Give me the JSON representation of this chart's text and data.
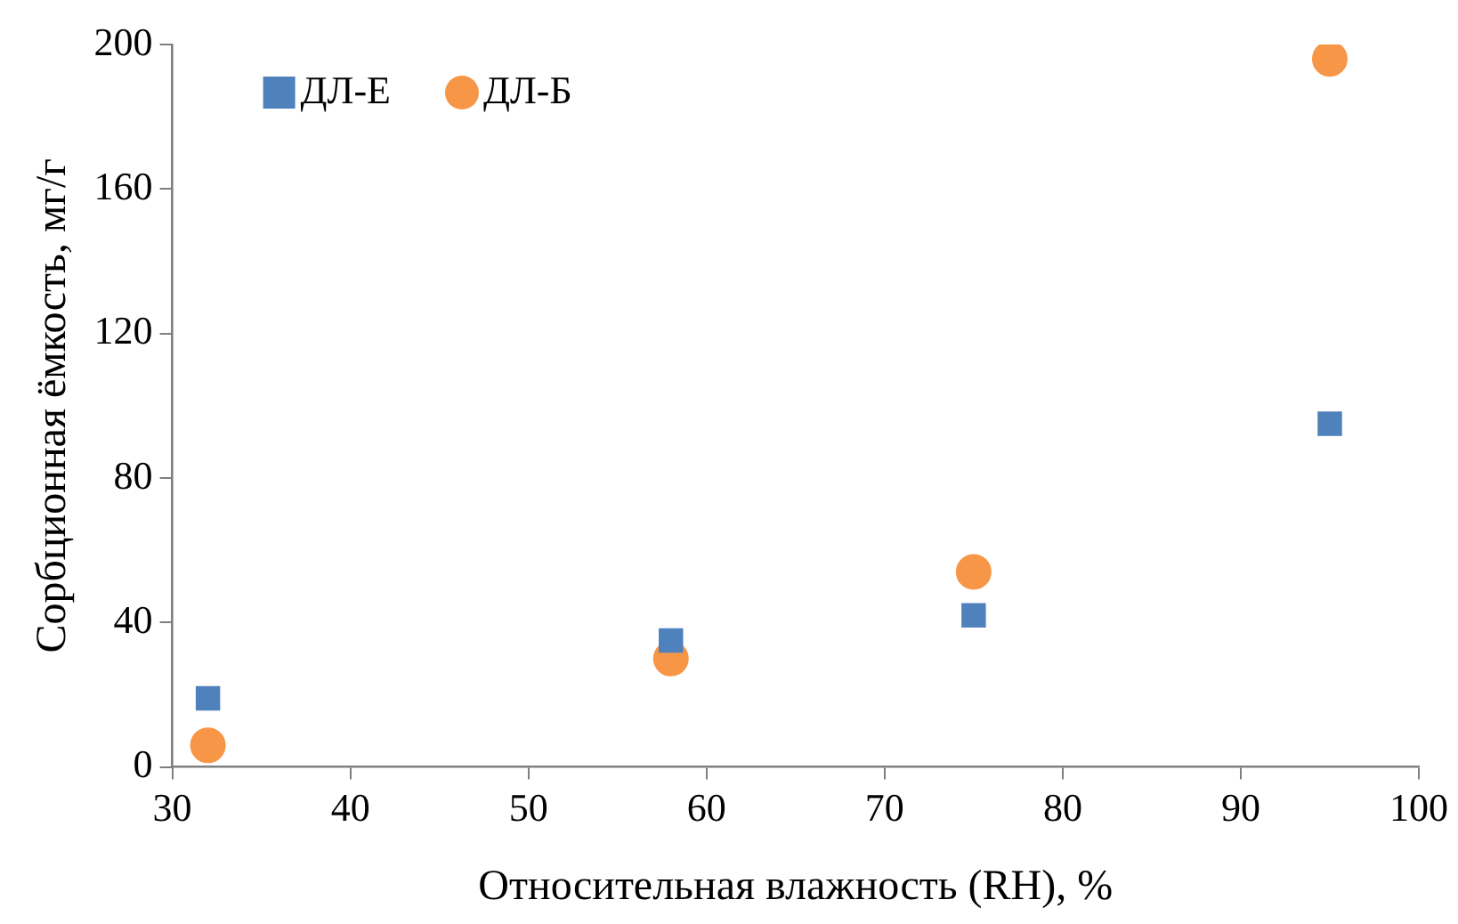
{
  "chart_data": {
    "type": "scatter",
    "xlabel": "Относительная влажность (RH), %",
    "ylabel": "Сорбционная ёмкость, мг/г",
    "xlim": [
      30,
      100
    ],
    "xticks": [
      30,
      40,
      50,
      60,
      70,
      80,
      90,
      100
    ],
    "ylim": [
      0,
      200
    ],
    "yticks": [
      0,
      40,
      80,
      120,
      160,
      200
    ],
    "grid": false,
    "legend": "top left",
    "series": [
      {
        "name": "ДЛ-Е",
        "color": "#4f81bd",
        "marker": "square",
        "x": [
          32,
          58,
          75,
          95
        ],
        "values": [
          19,
          35,
          42,
          95
        ]
      },
      {
        "name": "ДЛ-Б",
        "color": "#f79646",
        "marker": "circle",
        "x": [
          32,
          58,
          75,
          95
        ],
        "values": [
          6,
          30,
          54,
          196
        ]
      }
    ]
  }
}
